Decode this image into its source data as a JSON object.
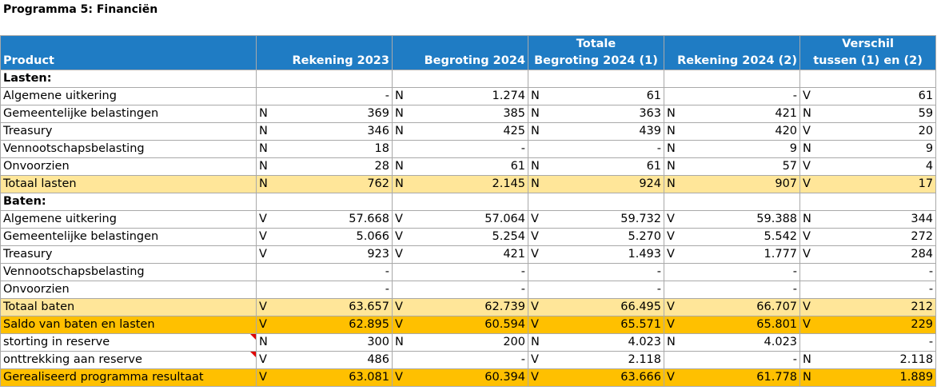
{
  "title": "Programma 5: Financiën",
  "headers": {
    "product": "Product",
    "rek2023": "Rekening 2023",
    "beg2024": "Begroting 2024",
    "totbeg_1": "Totale",
    "totbeg_2": "Begroting 2024 (1)",
    "rek2024": "Rekening 2024 (2)",
    "verschil_1": "Verschil",
    "verschil_2": "tussen (1) en (2)"
  },
  "rows": [
    {
      "type": "section",
      "name": "Lasten:",
      "cells": [
        [
          "",
          ""
        ],
        [
          "",
          ""
        ],
        [
          "",
          ""
        ],
        [
          "",
          ""
        ],
        [
          "",
          ""
        ]
      ]
    },
    {
      "type": "row",
      "name": "Algemene uitkering",
      "cells": [
        [
          "",
          "-"
        ],
        [
          "N",
          "1.274"
        ],
        [
          "N",
          "61"
        ],
        [
          "",
          "-"
        ],
        [
          "V",
          "61"
        ]
      ]
    },
    {
      "type": "row",
      "name": "Gemeentelijke belastingen",
      "cells": [
        [
          "N",
          "369"
        ],
        [
          "N",
          "385"
        ],
        [
          "N",
          "363"
        ],
        [
          "N",
          "421"
        ],
        [
          "N",
          "59"
        ]
      ]
    },
    {
      "type": "row",
      "name": "Treasury",
      "cells": [
        [
          "N",
          "346"
        ],
        [
          "N",
          "425"
        ],
        [
          "N",
          "439"
        ],
        [
          "N",
          "420"
        ],
        [
          "V",
          "20"
        ]
      ]
    },
    {
      "type": "row",
      "name": "Vennootschapsbelasting",
      "cells": [
        [
          "N",
          "18"
        ],
        [
          "",
          "-"
        ],
        [
          "",
          "-"
        ],
        [
          "N",
          "9"
        ],
        [
          "N",
          "9"
        ]
      ]
    },
    {
      "type": "row",
      "name": "Onvoorzien",
      "cells": [
        [
          "N",
          "28"
        ],
        [
          "N",
          "61"
        ],
        [
          "N",
          "61"
        ],
        [
          "N",
          "57"
        ],
        [
          "V",
          "4"
        ]
      ]
    },
    {
      "type": "total",
      "name": "Totaal lasten",
      "cells": [
        [
          "N",
          "762"
        ],
        [
          "N",
          "2.145"
        ],
        [
          "N",
          "924"
        ],
        [
          "N",
          "907"
        ],
        [
          "V",
          "17"
        ]
      ]
    },
    {
      "type": "section",
      "name": "Baten:",
      "cells": [
        [
          "",
          ""
        ],
        [
          "",
          ""
        ],
        [
          "",
          ""
        ],
        [
          "",
          ""
        ],
        [
          "",
          ""
        ]
      ]
    },
    {
      "type": "row",
      "name": "Algemene uitkering",
      "cells": [
        [
          "V",
          "57.668"
        ],
        [
          "V",
          "57.064"
        ],
        [
          "V",
          "59.732"
        ],
        [
          "V",
          "59.388"
        ],
        [
          "N",
          "344"
        ]
      ]
    },
    {
      "type": "row",
      "name": "Gemeentelijke belastingen",
      "cells": [
        [
          "V",
          "5.066"
        ],
        [
          "V",
          "5.254"
        ],
        [
          "V",
          "5.270"
        ],
        [
          "V",
          "5.542"
        ],
        [
          "V",
          "272"
        ]
      ]
    },
    {
      "type": "row",
      "name": "Treasury",
      "cells": [
        [
          "V",
          "923"
        ],
        [
          "V",
          "421"
        ],
        [
          "V",
          "1.493"
        ],
        [
          "V",
          "1.777"
        ],
        [
          "V",
          "284"
        ]
      ]
    },
    {
      "type": "row",
      "name": "Vennootschapsbelasting",
      "cells": [
        [
          "",
          "-"
        ],
        [
          "",
          "-"
        ],
        [
          "",
          "-"
        ],
        [
          "",
          "-"
        ],
        [
          "",
          "-"
        ]
      ]
    },
    {
      "type": "row",
      "name": "Onvoorzien",
      "cells": [
        [
          "",
          "-"
        ],
        [
          "",
          "-"
        ],
        [
          "",
          "-"
        ],
        [
          "",
          "-"
        ],
        [
          "",
          "-"
        ]
      ]
    },
    {
      "type": "total",
      "name": "Totaal baten",
      "cells": [
        [
          "V",
          "63.657"
        ],
        [
          "V",
          "62.739"
        ],
        [
          "V",
          "66.495"
        ],
        [
          "V",
          "66.707"
        ],
        [
          "V",
          "212"
        ]
      ]
    },
    {
      "type": "saldo",
      "name": "Saldo van baten en lasten",
      "cells": [
        [
          "V",
          "62.895"
        ],
        [
          "V",
          "60.594"
        ],
        [
          "V",
          "65.571"
        ],
        [
          "V",
          "65.801"
        ],
        [
          "V",
          "229"
        ]
      ]
    },
    {
      "type": "row",
      "name": "storting in reserve",
      "comment": true,
      "cells": [
        [
          "N",
          "300"
        ],
        [
          "N",
          "200"
        ],
        [
          "N",
          "4.023"
        ],
        [
          "N",
          "4.023"
        ],
        [
          "",
          "-"
        ]
      ]
    },
    {
      "type": "row",
      "name": "onttrekking aan reserve",
      "comment": true,
      "cells": [
        [
          "V",
          "486"
        ],
        [
          "",
          "-"
        ],
        [
          "V",
          "2.118"
        ],
        [
          "",
          "-"
        ],
        [
          "N",
          "2.118"
        ]
      ]
    },
    {
      "type": "saldo",
      "name": "Gerealiseerd programma resultaat",
      "cells": [
        [
          "V",
          "63.081"
        ],
        [
          "V",
          "60.394"
        ],
        [
          "V",
          "63.666"
        ],
        [
          "V",
          "61.778"
        ],
        [
          "N",
          "1.889"
        ]
      ]
    }
  ]
}
